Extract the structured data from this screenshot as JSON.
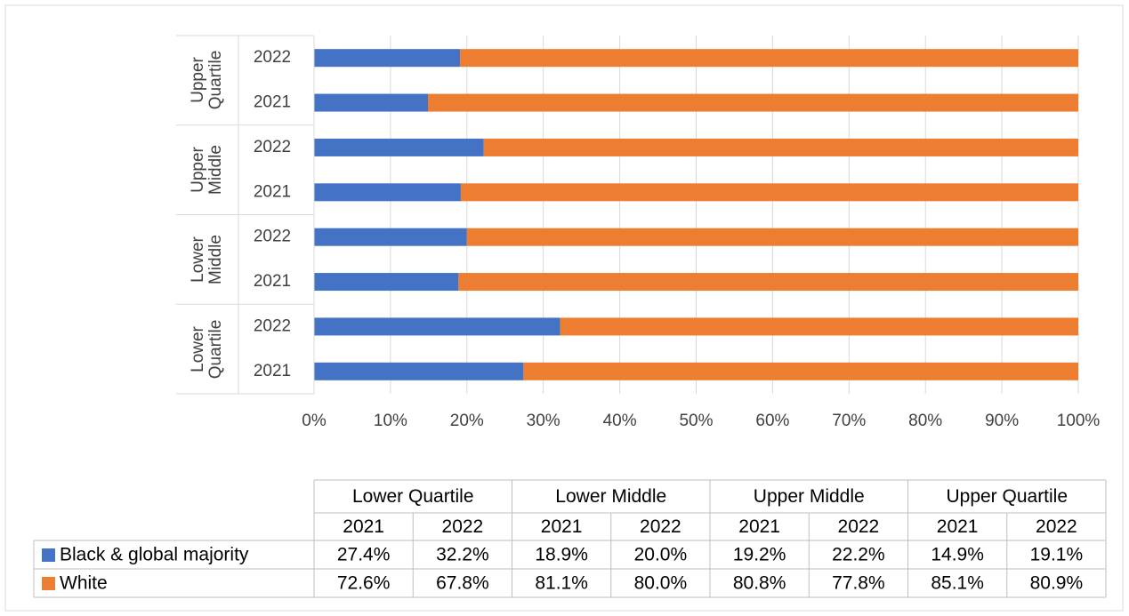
{
  "chart_data": {
    "type": "bar",
    "orientation": "horizontal",
    "stacked": true,
    "groups": [
      "Lower Quartile",
      "Lower Middle",
      "Upper Middle",
      "Upper Quartile"
    ],
    "categories": [
      "2021",
      "2022",
      "2021",
      "2022",
      "2021",
      "2022",
      "2021",
      "2022"
    ],
    "series": [
      {
        "name": "Black & global majority",
        "color": "#4472c4",
        "values": [
          27.4,
          32.2,
          18.9,
          20.0,
          19.2,
          22.2,
          14.9,
          19.1
        ],
        "value_labels": [
          "27.4%",
          "32.2%",
          "18.9%",
          "20.0%",
          "19.2%",
          "22.2%",
          "14.9%",
          "19.1%"
        ]
      },
      {
        "name": "White",
        "color": "#ed7d31",
        "values": [
          72.6,
          67.8,
          81.1,
          80.0,
          80.8,
          77.8,
          85.1,
          80.9
        ],
        "value_labels": [
          "72.6%",
          "67.8%",
          "81.1%",
          "80.0%",
          "80.8%",
          "77.8%",
          "85.1%",
          "80.9%"
        ]
      }
    ],
    "xlim": [
      0,
      100
    ],
    "xticks": [
      {
        "value": 0,
        "label": "0%"
      },
      {
        "value": 10,
        "label": "10%"
      },
      {
        "value": 20,
        "label": "20%"
      },
      {
        "value": 30,
        "label": "30%"
      },
      {
        "value": 40,
        "label": "40%"
      },
      {
        "value": 50,
        "label": "50%"
      },
      {
        "value": 60,
        "label": "60%"
      },
      {
        "value": 70,
        "label": "70%"
      },
      {
        "value": 80,
        "label": "80%"
      },
      {
        "value": 90,
        "label": "90%"
      },
      {
        "value": 100,
        "label": "100%"
      }
    ],
    "grid": true
  }
}
